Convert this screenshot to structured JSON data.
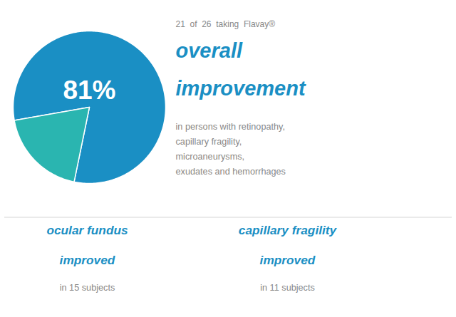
{
  "chart_data": {
    "type": "pie",
    "values": [
      81,
      19
    ],
    "colors": [
      "#1a8fc4",
      "#2ab5b0"
    ],
    "annotations": [
      "81%",
      "21  of  26  taking  Flavay®",
      "overall",
      "improvement",
      "in persons with retinopathy,\ncapillary fragility,\nmicroaneurysms,\nexudates and hemorrhages",
      "ocular fundus",
      "improved",
      "in 15 subjects",
      "capillary fragility",
      "improved",
      "in 11 subjects"
    ]
  }
}
